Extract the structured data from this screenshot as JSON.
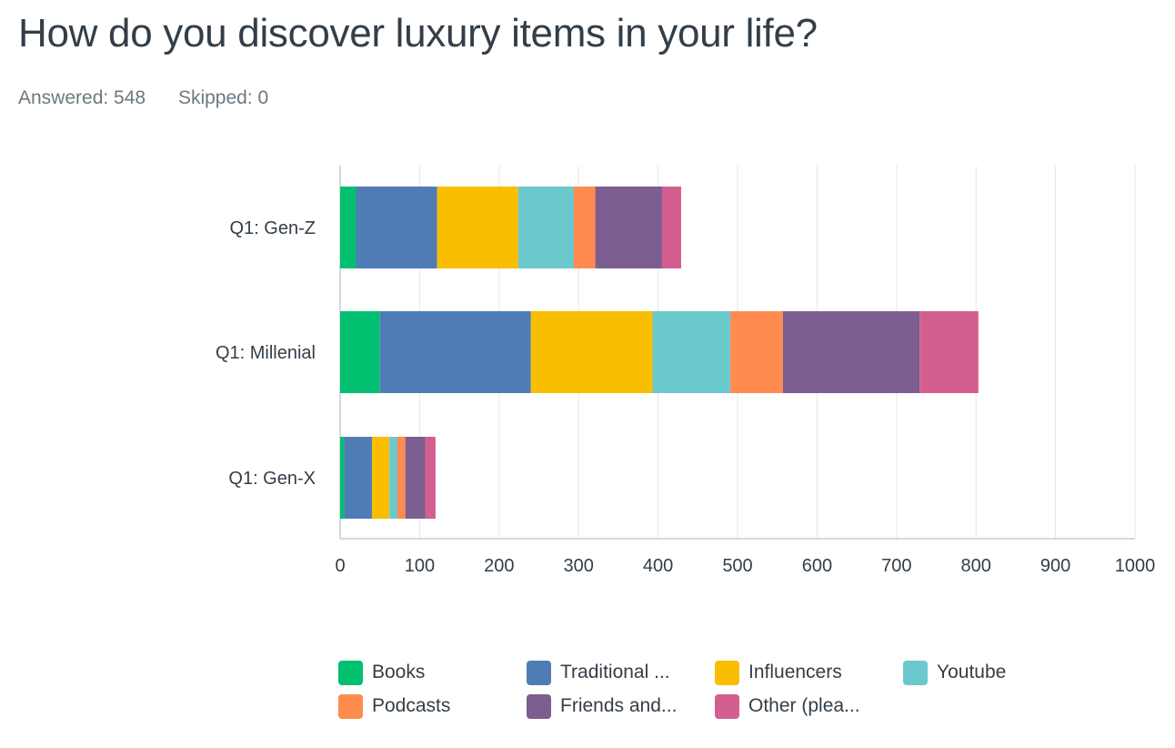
{
  "header": {
    "title": "How do you discover luxury items in your life?",
    "answered": "Answered: 548",
    "skipped": "Skipped: 0"
  },
  "chart_data": {
    "type": "bar",
    "orientation": "horizontal",
    "stacked": true,
    "categories": [
      "Q1: Gen-Z",
      "Q1: Millenial",
      "Q1: Gen-X"
    ],
    "series": [
      {
        "name": "Books",
        "color": "#00bf6f",
        "values": [
          20,
          50,
          5
        ]
      },
      {
        "name": "Traditional ...",
        "color": "#507cb6",
        "values": [
          102,
          190,
          35
        ]
      },
      {
        "name": "Influencers",
        "color": "#f9be00",
        "values": [
          102,
          153,
          22
        ]
      },
      {
        "name": "Youtube",
        "color": "#6bc8cd",
        "values": [
          70,
          98,
          10
        ]
      },
      {
        "name": "Podcasts",
        "color": "#ff8b4f",
        "values": [
          27,
          66,
          10
        ]
      },
      {
        "name": "Friends and...",
        "color": "#7d5e90",
        "values": [
          84,
          172,
          25
        ]
      },
      {
        "name": "Other (plea...",
        "color": "#d25f90",
        "values": [
          24,
          74,
          13
        ]
      }
    ],
    "xlim": [
      0,
      1000
    ],
    "x_ticks": [
      "0",
      "100",
      "200",
      "300",
      "400",
      "500",
      "600",
      "700",
      "800",
      "900",
      "1000"
    ],
    "grid": true,
    "legend_position": "bottom"
  }
}
